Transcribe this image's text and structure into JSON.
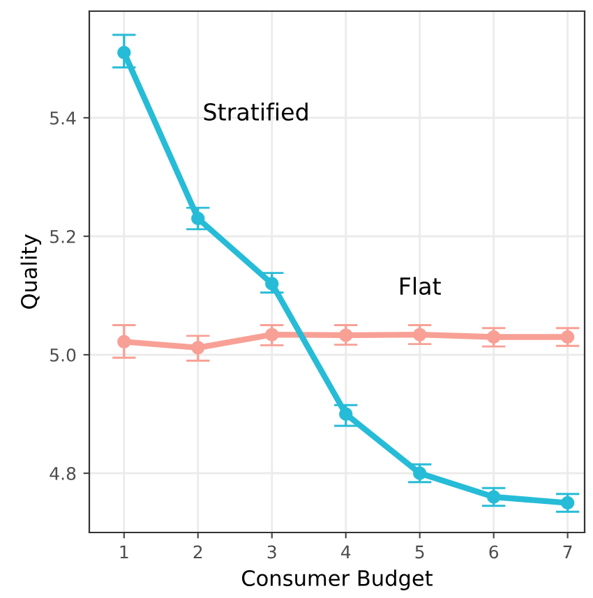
{
  "chart_data": {
    "type": "line",
    "xlabel": "Consumer Budget",
    "ylabel": "Quality",
    "x": [
      1,
      2,
      3,
      4,
      5,
      6,
      7
    ],
    "series": [
      {
        "name": "Flat",
        "color": "#f8a095",
        "values": [
          5.022,
          5.012,
          5.034,
          5.033,
          5.034,
          5.03,
          5.03
        ],
        "errors": [
          [
            4.995,
            5.05
          ],
          [
            4.99,
            5.032
          ],
          [
            5.016,
            5.05
          ],
          [
            5.017,
            5.05
          ],
          [
            5.018,
            5.05
          ],
          [
            5.014,
            5.045
          ],
          [
            5.015,
            5.045
          ]
        ]
      },
      {
        "name": "Stratified",
        "color": "#26bcd7",
        "values": [
          5.51,
          5.23,
          5.12,
          4.9,
          4.8,
          4.76,
          4.75
        ],
        "errors": [
          [
            5.485,
            5.54
          ],
          [
            5.212,
            5.248
          ],
          [
            5.105,
            5.138
          ],
          [
            4.88,
            4.915
          ],
          [
            4.785,
            4.815
          ],
          [
            4.745,
            4.775
          ],
          [
            4.735,
            4.765
          ]
        ]
      }
    ],
    "xlim": [
      0.53,
      7.23
    ],
    "ylim": [
      4.7,
      5.58
    ],
    "xticks": [
      1,
      2,
      3,
      4,
      5,
      6,
      7
    ],
    "yticks": [
      4.8,
      {
        "value": 5.0,
        "label": "5.0"
      },
      5.2,
      5.4
    ],
    "grid": true,
    "marker": "circle",
    "line_style": "solid"
  }
}
